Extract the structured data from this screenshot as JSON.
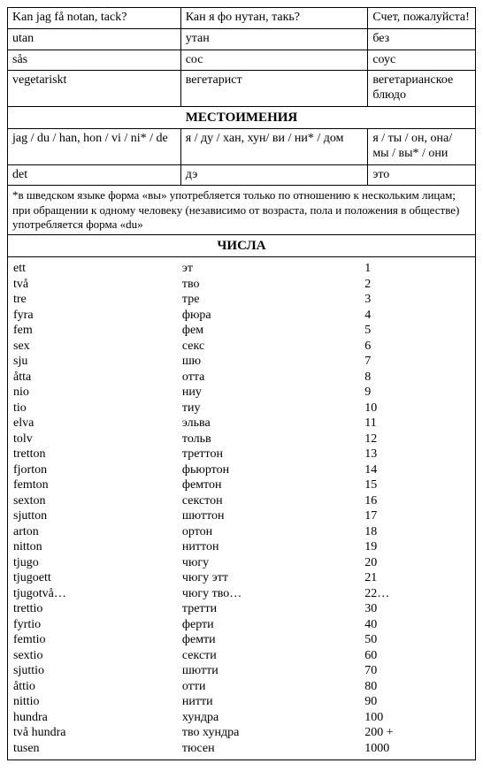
{
  "col_widths": {
    "c1": "37%",
    "c2": "40%",
    "c3": "23%"
  },
  "phrases": [
    {
      "sv": "Kan jag få notan, tack?",
      "tr": "Кан я фо нутан, такь?",
      "ru": "Счет, пожалуйста!"
    },
    {
      "sv": "utan",
      "tr": "утан",
      "ru": "без"
    },
    {
      "sv": "sås",
      "tr": "сос",
      "ru": "соус"
    },
    {
      "sv": "vegetariskt",
      "tr": "вегетарист",
      "ru": "вегетарианское блюдо"
    }
  ],
  "section_pronouns_title": "МЕСТОИМЕНИЯ",
  "pronouns": [
    {
      "sv": "jag / du / han, hon / vi / ni* / de",
      "tr": "я / ду / хан, хун/ ви / ни* / дом",
      "ru": "я / ты / он, она/ мы / вы* / они"
    },
    {
      "sv": "det",
      "tr": "дэ",
      "ru": "это"
    }
  ],
  "footnote": "*в шведском языке форма «вы» употребляется только по отношению к нескольким лицам; при обращении к одному человеку (независимо от возраста, пола и положения в обществе) употребляется форма «du»",
  "section_numbers_title": "ЧИСЛА",
  "numbers": [
    {
      "sv": "ett",
      "tr": "эт",
      "ru": "1"
    },
    {
      "sv": "två",
      "tr": "тво",
      "ru": "2"
    },
    {
      "sv": "tre",
      "tr": "тре",
      "ru": "3"
    },
    {
      "sv": "fyra",
      "tr": "фюра",
      "ru": "4"
    },
    {
      "sv": "fem",
      "tr": "фем",
      "ru": "5"
    },
    {
      "sv": "sex",
      "tr": "секс",
      "ru": "6"
    },
    {
      "sv": "sju",
      "tr": "шю",
      "ru": "7"
    },
    {
      "sv": "åtta",
      "tr": "отта",
      "ru": "8"
    },
    {
      "sv": "nio",
      "tr": "ниу",
      "ru": "9"
    },
    {
      "sv": "tio",
      "tr": "тиу",
      "ru": "10"
    },
    {
      "sv": "elva",
      "tr": "эльва",
      "ru": "11"
    },
    {
      "sv": "tolv",
      "tr": "тольв",
      "ru": "12"
    },
    {
      "sv": "tretton",
      "tr": "треттон",
      "ru": "13"
    },
    {
      "sv": "fjorton",
      "tr": "фьюртон",
      "ru": "14"
    },
    {
      "sv": "femton",
      "tr": "фемтон",
      "ru": "15"
    },
    {
      "sv": "sexton",
      "tr": "секстон",
      "ru": "16"
    },
    {
      "sv": "sjutton",
      "tr": "шюттон",
      "ru": "17"
    },
    {
      "sv": "arton",
      "tr": "ортон",
      "ru": "18"
    },
    {
      "sv": "nitton",
      "tr": "ниттон",
      "ru": "19"
    },
    {
      "sv": "tjugo",
      "tr": "чюгу",
      "ru": "20"
    },
    {
      "sv": "tjugoett",
      "tr": "чюгу этт",
      "ru": "21"
    },
    {
      "sv": "tjugotvå…",
      "tr": "чюгу тво…",
      "ru": "22…"
    },
    {
      "sv": "trettio",
      "tr": "третти",
      "ru": "30"
    },
    {
      "sv": "fyrtio",
      "tr": "ферти",
      "ru": "40"
    },
    {
      "sv": "femtio",
      "tr": "фемти",
      "ru": "50"
    },
    {
      "sv": "sextio",
      "tr": "сексти",
      "ru": "60"
    },
    {
      "sv": "sjuttio",
      "tr": "шютти",
      "ru": "70"
    },
    {
      "sv": "åttio",
      "tr": "отти",
      "ru": "80"
    },
    {
      "sv": "nittio",
      "tr": "нитти",
      "ru": "90"
    },
    {
      "sv": "hundra",
      "tr": "хундра",
      "ru": "100"
    },
    {
      "sv": "två hundra",
      "tr": "тво хундра",
      "ru": "200 +"
    },
    {
      "sv": "tusen",
      "tr": "тюсен",
      "ru": "1000"
    }
  ]
}
